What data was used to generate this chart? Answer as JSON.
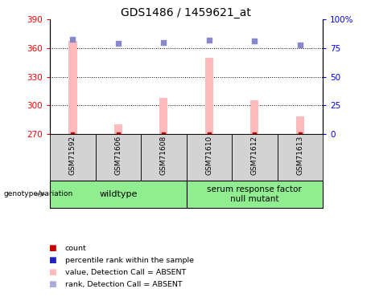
{
  "title": "GDS1486 / 1459621_at",
  "samples": [
    "GSM71592",
    "GSM71606",
    "GSM71608",
    "GSM71610",
    "GSM71612",
    "GSM71613"
  ],
  "bar_values": [
    368,
    280,
    308,
    350,
    305,
    288
  ],
  "bar_base": 270,
  "rank_values": [
    83,
    79,
    80,
    82,
    81,
    78
  ],
  "ylim_left": [
    270,
    390
  ],
  "ylim_right": [
    0,
    100
  ],
  "yticks_left": [
    270,
    300,
    330,
    360,
    390
  ],
  "yticks_right": [
    0,
    25,
    50,
    75,
    100
  ],
  "bar_color": "#ffbbbb",
  "count_color": "#cc0000",
  "rank_dot_color": "#8888cc",
  "wildtype_label": "wildtype",
  "mutant_label": "serum response factor\nnull mutant",
  "genotype_label": "genotype/variation",
  "legend_items": [
    {
      "label": "count",
      "color": "#cc0000"
    },
    {
      "label": "percentile rank within the sample",
      "color": "#2222bb"
    },
    {
      "label": "value, Detection Call = ABSENT",
      "color": "#ffbbbb"
    },
    {
      "label": "rank, Detection Call = ABSENT",
      "color": "#aaaadd"
    }
  ]
}
